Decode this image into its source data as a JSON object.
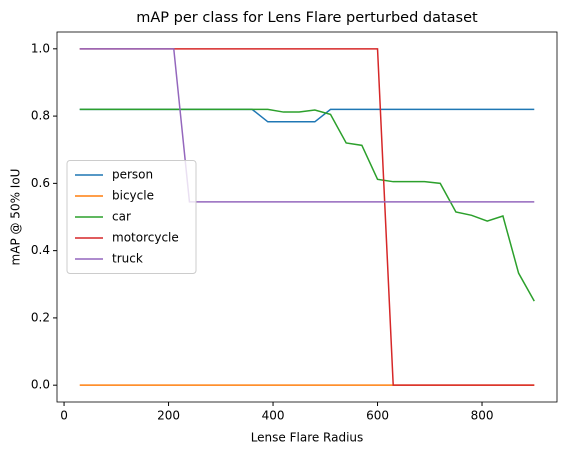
{
  "chart_data": {
    "type": "line",
    "title": "mAP per class for Lens Flare perturbed dataset",
    "x_label": "Lense Flare Radius",
    "y_label": "mAP @ 50% IoU",
    "x": [
      30,
      60,
      90,
      120,
      150,
      180,
      210,
      240,
      270,
      300,
      330,
      360,
      390,
      420,
      450,
      480,
      510,
      540,
      570,
      600,
      630,
      660,
      690,
      720,
      750,
      780,
      810,
      840,
      870,
      900
    ],
    "series": [
      {
        "name": "person",
        "color": "#1f77b4",
        "values": [
          0.82,
          0.82,
          0.82,
          0.82,
          0.82,
          0.82,
          0.82,
          0.82,
          0.82,
          0.82,
          0.82,
          0.82,
          0.783,
          0.783,
          0.783,
          0.783,
          0.82,
          0.82,
          0.82,
          0.82,
          0.82,
          0.82,
          0.82,
          0.82,
          0.82,
          0.82,
          0.82,
          0.82,
          0.82,
          0.82
        ]
      },
      {
        "name": "bicycle",
        "color": "#ff7f0e",
        "values": [
          0,
          0,
          0,
          0,
          0,
          0,
          0,
          0,
          0,
          0,
          0,
          0,
          0,
          0,
          0,
          0,
          0,
          0,
          0,
          0,
          0,
          0,
          0,
          0,
          0,
          0,
          0,
          0,
          0,
          0
        ]
      },
      {
        "name": "car",
        "color": "#2ca02c",
        "values": [
          0.82,
          0.82,
          0.82,
          0.82,
          0.82,
          0.82,
          0.82,
          0.82,
          0.82,
          0.82,
          0.82,
          0.82,
          0.82,
          0.812,
          0.812,
          0.818,
          0.805,
          0.72,
          0.713,
          0.612,
          0.605,
          0.605,
          0.605,
          0.6,
          0.515,
          0.505,
          0.488,
          0.503,
          0.333,
          0.25
        ]
      },
      {
        "name": "motorcycle",
        "color": "#d62728",
        "values": [
          1,
          1,
          1,
          1,
          1,
          1,
          1,
          1,
          1,
          1,
          1,
          1,
          1,
          1,
          1,
          1,
          1,
          1,
          1,
          1,
          0,
          0,
          0,
          0,
          0,
          0,
          0,
          0,
          0,
          0
        ]
      },
      {
        "name": "truck",
        "color": "#9467bd",
        "values": [
          1,
          1,
          1,
          1,
          1,
          1,
          1,
          0.545,
          0.545,
          0.545,
          0.545,
          0.545,
          0.545,
          0.545,
          0.545,
          0.545,
          0.545,
          0.545,
          0.545,
          0.545,
          0.545,
          0.545,
          0.545,
          0.545,
          0.545,
          0.545,
          0.545,
          0.545,
          0.545,
          0.545
        ]
      }
    ],
    "xlim": [
      -13.5,
      943.5
    ],
    "ylim": [
      -0.05,
      1.05
    ],
    "xticks": [
      0,
      200,
      400,
      600,
      800
    ],
    "yticks": [
      {
        "value": 0,
        "label": "0.0"
      },
      {
        "value": 0.2,
        "label": "0.2"
      },
      {
        "value": 0.4,
        "label": "0.4"
      },
      {
        "value": 0.6,
        "label": "0.6"
      },
      {
        "value": 0.8,
        "label": "0.8"
      },
      {
        "value": 1,
        "label": "1.0"
      }
    ],
    "grid": false,
    "legend": "center left"
  }
}
